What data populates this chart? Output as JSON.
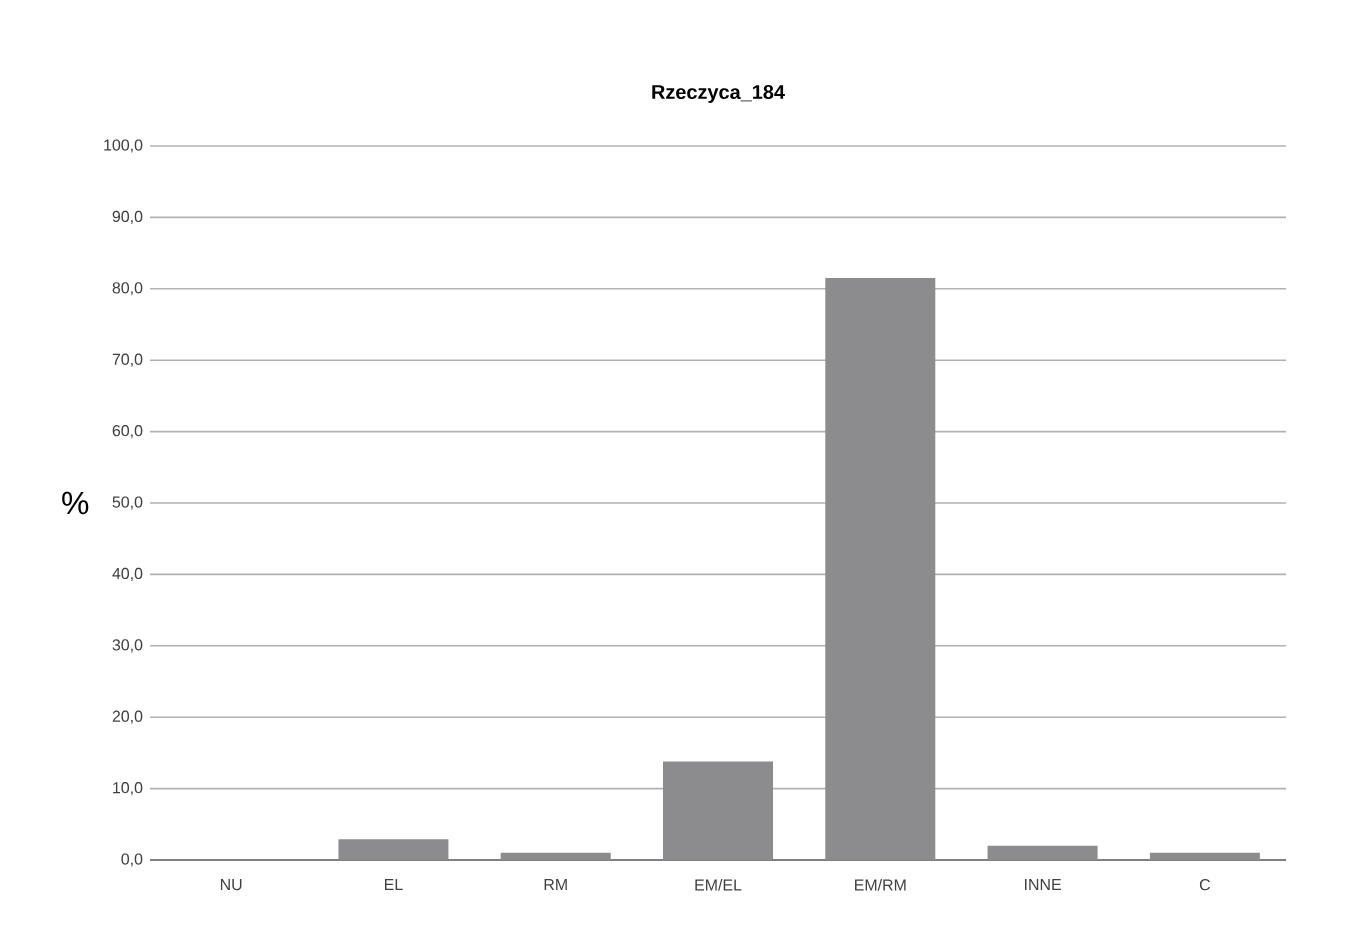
{
  "chart_data": {
    "type": "bar",
    "title": "Rzeczyca_184",
    "ylabel": "%",
    "categories": [
      "NU",
      "EL",
      "RM",
      "EM/EL",
      "EM/RM",
      "INNE",
      "C"
    ],
    "values": [
      0,
      2.9,
      1.0,
      13.8,
      81.5,
      2.0,
      1.0
    ],
    "color": "#8c8c8e",
    "ylim": [
      0,
      100
    ],
    "yticks": [
      {
        "value": 0,
        "label": "0,0"
      },
      {
        "value": 10,
        "label": "10,0"
      },
      {
        "value": 20,
        "label": "20,0"
      },
      {
        "value": 30,
        "label": "30,0"
      },
      {
        "value": 40,
        "label": "40,0"
      },
      {
        "value": 50,
        "label": "50,0"
      },
      {
        "value": 60,
        "label": "60,0"
      },
      {
        "value": 70,
        "label": "70,0"
      },
      {
        "value": 80,
        "label": "80,0"
      },
      {
        "value": 90,
        "label": "90,0"
      },
      {
        "value": 100,
        "label": "100,0"
      }
    ],
    "grid": "y"
  }
}
